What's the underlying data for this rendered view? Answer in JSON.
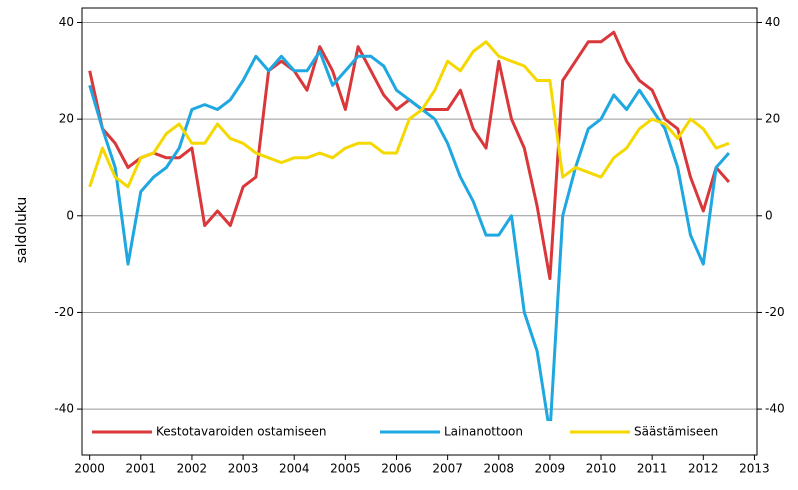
{
  "chart_data": {
    "type": "line",
    "y_label": "saldoluku",
    "x": [
      2000,
      2000.25,
      2000.5,
      2000.75,
      2001,
      2001.25,
      2001.5,
      2001.75,
      2002,
      2002.25,
      2002.5,
      2002.75,
      2003,
      2003.25,
      2003.5,
      2003.75,
      2004,
      2004.25,
      2004.5,
      2004.75,
      2005,
      2005.25,
      2005.5,
      2005.75,
      2006,
      2006.25,
      2006.5,
      2006.75,
      2007,
      2007.25,
      2007.5,
      2007.75,
      2008,
      2008.25,
      2008.5,
      2008.75,
      2009,
      2009.25,
      2009.5,
      2009.75,
      2010,
      2010.25,
      2010.5,
      2010.75,
      2011,
      2011.25,
      2011.5,
      2011.75,
      2012,
      2012.25,
      2012.5
    ],
    "series": [
      {
        "name": "Kestotavaroiden ostamiseen",
        "color": "#d9373a",
        "values": [
          30,
          18,
          15,
          10,
          12,
          13,
          12,
          12,
          14,
          -2,
          1,
          -2,
          6,
          8,
          30,
          32,
          30,
          26,
          35,
          30,
          22,
          35,
          30,
          25,
          22,
          24,
          22,
          22,
          22,
          26,
          18,
          14,
          32,
          20,
          14,
          2,
          -13,
          28,
          32,
          36,
          36,
          38,
          32,
          28,
          26,
          20,
          18,
          8,
          1,
          10,
          7
        ]
      },
      {
        "name": "Lainanottoon",
        "color": "#1ea7e0",
        "values": [
          27,
          18,
          10,
          -10,
          5,
          8,
          10,
          14,
          22,
          23,
          22,
          24,
          28,
          33,
          30,
          33,
          30,
          30,
          34,
          27,
          30,
          33,
          33,
          31,
          26,
          24,
          22,
          20,
          15,
          8,
          3,
          -4,
          -4,
          0,
          -20,
          -28,
          -45,
          0,
          10,
          18,
          20,
          25,
          22,
          26,
          22,
          18,
          10,
          -4,
          -10,
          10,
          13
        ]
      },
      {
        "name": "Säästämiseen",
        "color": "#f5d800",
        "values": [
          6,
          14,
          8,
          6,
          12,
          13,
          17,
          19,
          15,
          15,
          19,
          16,
          15,
          13,
          12,
          11,
          12,
          12,
          13,
          12,
          14,
          15,
          15,
          13,
          13,
          20,
          22,
          26,
          32,
          30,
          34,
          36,
          33,
          32,
          31,
          28,
          28,
          8,
          10,
          9,
          8,
          12,
          14,
          18,
          20,
          19,
          16,
          20,
          18,
          14,
          15
        ]
      }
    ],
    "xlim": [
      1999.85,
      2013.05
    ],
    "xticks": [
      2000,
      2001,
      2002,
      2003,
      2004,
      2005,
      2006,
      2007,
      2008,
      2009,
      2010,
      2011,
      2012,
      2013
    ],
    "ylim": [
      -49.5,
      43
    ],
    "yticks": [
      -40,
      -20,
      0,
      20,
      40
    ],
    "y2lim": [
      -49.5,
      43
    ],
    "y2ticks": [
      -40,
      -20,
      0,
      20,
      40
    ],
    "grid": true,
    "legend": "bottom"
  }
}
